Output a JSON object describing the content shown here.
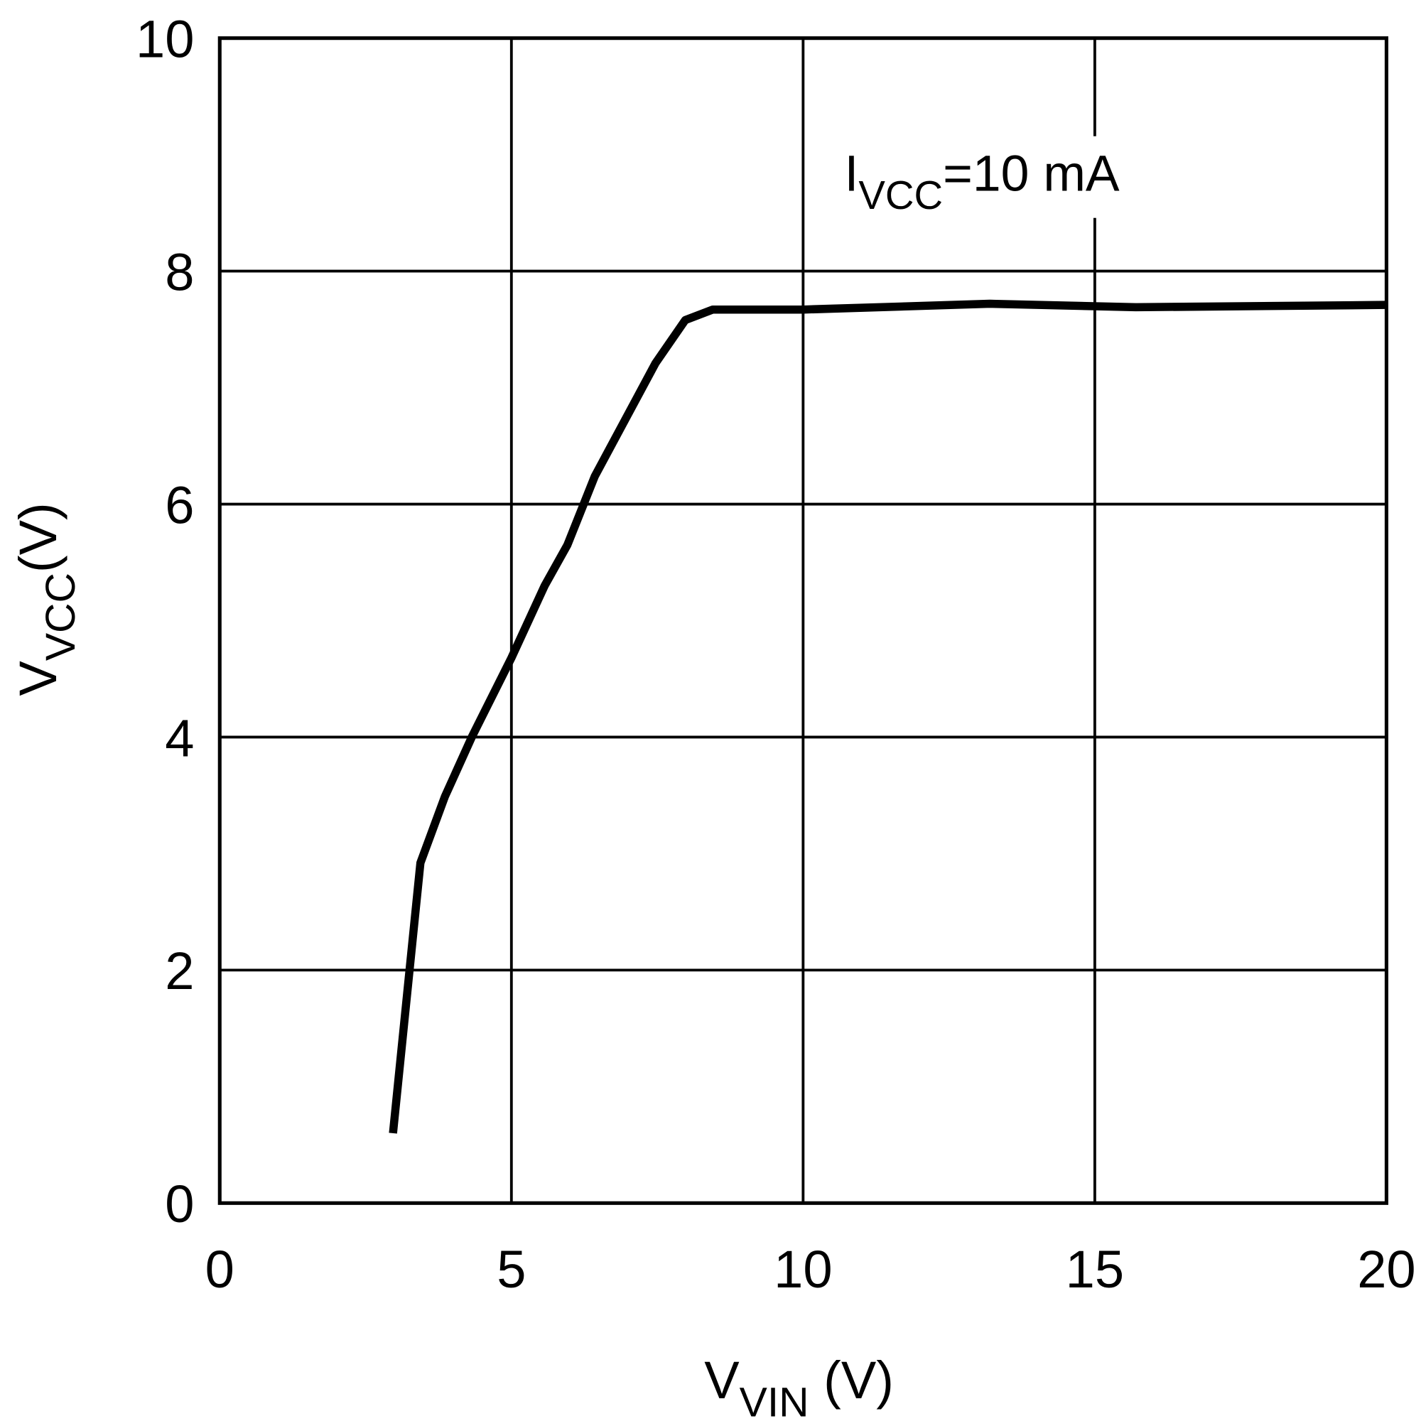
{
  "chart_data": {
    "type": "line",
    "title": "",
    "xlabel": {
      "main": "V",
      "sub": "VIN",
      "unit": " (V)"
    },
    "ylabel": {
      "main": "V",
      "sub": "VCC",
      "unit": "(V)"
    },
    "xlim": [
      0,
      20
    ],
    "ylim": [
      0,
      10
    ],
    "xticks": [
      0,
      5,
      10,
      15,
      20
    ],
    "yticks": [
      0,
      2,
      4,
      6,
      8,
      10
    ],
    "xtick_labels": [
      "0",
      "5",
      "10",
      "15",
      "20"
    ],
    "ytick_labels": [
      "0",
      "2",
      "4",
      "6",
      "8",
      "10"
    ],
    "grid": true,
    "annotation": {
      "main": "I",
      "sub": "VCC",
      "rest": "=10 mA"
    },
    "line_color": "#000000",
    "series": [
      {
        "x": [
          2.97,
          3.44,
          3.86,
          4.33,
          5.0,
          5.57,
          5.96,
          6.43,
          7.47,
          7.98,
          8.45,
          10.0,
          13.2,
          15.7,
          20.0
        ],
        "y": [
          0.6,
          2.92,
          3.49,
          4.01,
          4.68,
          5.3,
          5.65,
          6.24,
          7.21,
          7.58,
          7.67,
          7.67,
          7.72,
          7.69,
          7.71
        ]
      }
    ]
  }
}
